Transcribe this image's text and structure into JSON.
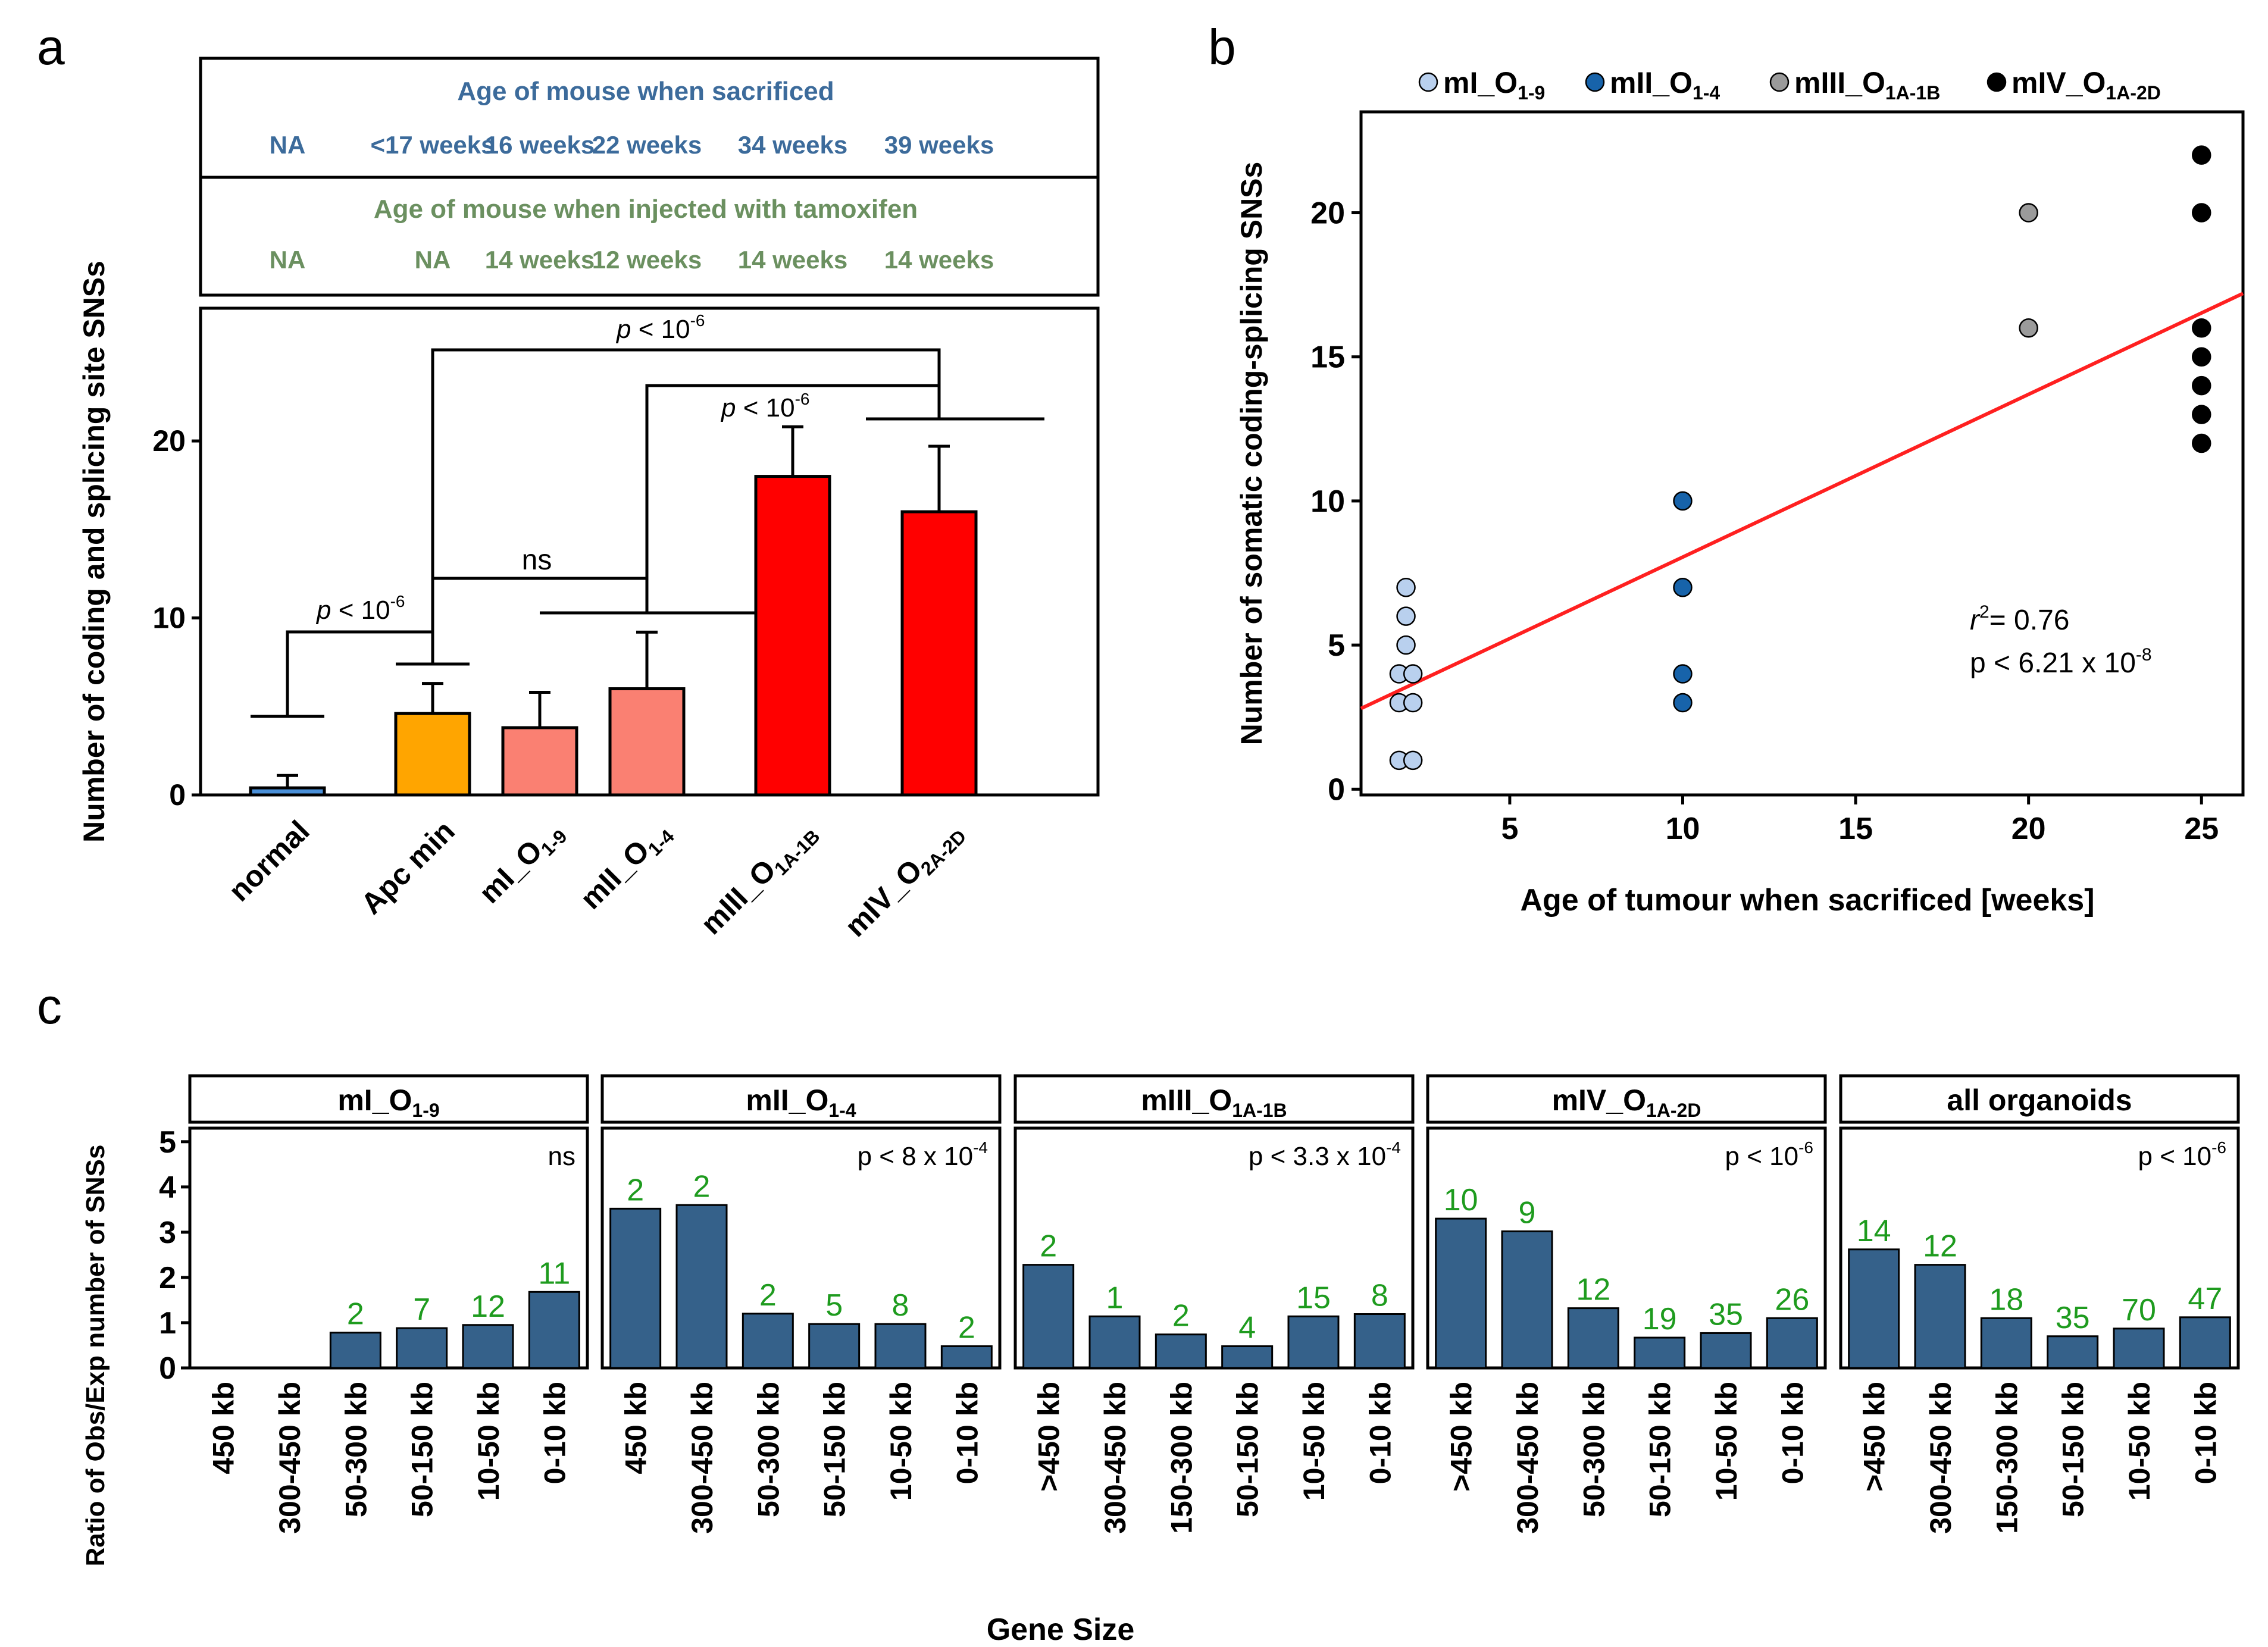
{
  "panel_labels": {
    "a": "a",
    "b": "b",
    "c": "c"
  },
  "colors": {
    "blue_text": "#3c6b9b",
    "green_text": "#6b9060",
    "count_green": "#1e9b1e",
    "bar_c": "#35618a",
    "reg_line": "#ff2020"
  },
  "chart_data": [
    {
      "id": "panel_a",
      "type": "bar",
      "ylabel": "Number of coding and splicing site SNSs",
      "ylim": [
        0,
        27.5
      ],
      "yticks": [
        0,
        10,
        20
      ],
      "categories": [
        "normal",
        "Apc min",
        "mI_O",
        "mII_O",
        "mIII_O",
        "mIV_O"
      ],
      "category_subscripts": [
        "",
        "",
        "1-9",
        "1-4",
        "1A-1B",
        "2A-2D"
      ],
      "values": [
        0.4,
        4.6,
        3.8,
        6.0,
        18.0,
        16.0
      ],
      "errors": [
        0.7,
        1.7,
        2.0,
        3.2,
        2.8,
        3.7
      ],
      "bar_colors": [
        "#4a90d9",
        "#ffa500",
        "#fa8072",
        "#fa8072",
        "#ff0000",
        "#ff0000"
      ],
      "annotations": [
        "p < 10",
        "p < 10",
        "ns",
        "p < 10"
      ],
      "annotation_exponents": [
        "-6",
        "-6",
        "",
        "-6"
      ],
      "table": {
        "title_1": "Age of mouse when sacrificed",
        "row_1": [
          "NA",
          "<17 weeks",
          "16 weeks",
          "22 weeks",
          "34 weeks",
          "39 weeks"
        ],
        "title_2": "Age of mouse when injected with tamoxifen",
        "row_2": [
          "NA",
          "NA",
          "14 weeks",
          "12 weeks",
          "14 weeks",
          "14 weeks"
        ]
      }
    },
    {
      "id": "panel_b",
      "type": "scatter",
      "xlabel": "Age of tumour when sacrificed [weeks]",
      "ylabel": "Number of somatic coding-splicing SNSs",
      "xlim": [
        0.7,
        26.2
      ],
      "ylim": [
        -0.2,
        23.5
      ],
      "xticks": [
        5,
        10,
        15,
        20,
        25
      ],
      "yticks": [
        0,
        5,
        10,
        15,
        20
      ],
      "legend": [
        {
          "name": "mI_O",
          "sub": "1-9",
          "color": "#b9d0ee"
        },
        {
          "name": "mII_O",
          "sub": "1-4",
          "color": "#1763aa"
        },
        {
          "name": "mIII_O",
          "sub": "1A-1B",
          "color": "#9b9b9b"
        },
        {
          "name": "mIV_O",
          "sub": "1A-2D",
          "color": "#000000"
        }
      ],
      "series": [
        {
          "name": "mI_O1-9",
          "color": "#b9d0ee",
          "points": [
            [
              2,
              7
            ],
            [
              2,
              6
            ],
            [
              2,
              5
            ],
            [
              1.8,
              4
            ],
            [
              2.2,
              4
            ],
            [
              1.8,
              3
            ],
            [
              2.2,
              3
            ],
            [
              1.8,
              1
            ],
            [
              2.2,
              1
            ]
          ]
        },
        {
          "name": "mII_O1-4",
          "color": "#1763aa",
          "points": [
            [
              10,
              10
            ],
            [
              10,
              7
            ],
            [
              10,
              4
            ],
            [
              10,
              3
            ]
          ]
        },
        {
          "name": "mIII_O1A-1B",
          "color": "#9b9b9b",
          "points": [
            [
              20,
              20
            ],
            [
              20,
              16
            ]
          ]
        },
        {
          "name": "mIV_O1A-2D",
          "color": "#000000",
          "points": [
            [
              25,
              22
            ],
            [
              25,
              20
            ],
            [
              25,
              16
            ],
            [
              25,
              15
            ],
            [
              25,
              14
            ],
            [
              25,
              13
            ],
            [
              25,
              12
            ]
          ]
        }
      ],
      "regression": {
        "x": [
          0.7,
          26.2
        ],
        "y": [
          2.8,
          17.2
        ]
      },
      "stat_r2": "= 0.76",
      "stat_p": "p < 6.21 x 10",
      "stat_p_exp": "-8"
    },
    {
      "id": "panel_c",
      "type": "bar",
      "xlabel": "Gene Size",
      "ylabel": "Ratio of Obs/Exp  number of SNSs",
      "ylim": [
        0,
        5.3
      ],
      "yticks": [
        0,
        1,
        2,
        3,
        4,
        5
      ],
      "facets": [
        {
          "title": "mI_O",
          "title_sub": "1-9",
          "pval": "ns",
          "pval_exp": "",
          "categories": [
            "450 kb",
            "300-450 kb",
            "50-300 kb",
            "50-150 kb",
            "10-50 kb",
            "0-10 kb"
          ],
          "values": [
            0,
            0,
            0.78,
            0.88,
            0.95,
            1.68
          ],
          "counts": [
            "",
            "",
            "2",
            "7",
            "12",
            "11"
          ]
        },
        {
          "title": "mII_O",
          "title_sub": "1-4",
          "pval": "p < 8 x 10",
          "pval_exp": "-4",
          "categories": [
            "450 kb",
            "300-450 kb",
            "50-300 kb",
            "50-150 kb",
            "10-50 kb",
            "0-10 kb"
          ],
          "values": [
            3.52,
            3.6,
            1.2,
            0.97,
            0.97,
            0.48
          ],
          "counts": [
            "2",
            "2",
            "2",
            "5",
            "8",
            "2"
          ]
        },
        {
          "title": "mIII_O",
          "title_sub": "1A-1B",
          "pval": "p < 3.3 x 10",
          "pval_exp": "-4",
          "categories": [
            ">450 kb",
            "300-450 kb",
            "150-300 kb",
            "50-150 kb",
            "10-50 kb",
            "0-10 kb"
          ],
          "values": [
            2.28,
            1.14,
            0.74,
            0.48,
            1.14,
            1.19
          ],
          "counts": [
            "2",
            "1",
            "2",
            "4",
            "15",
            "8"
          ]
        },
        {
          "title": "mIV_O",
          "title_sub": "1A-2D",
          "pval": "p < 10",
          "pval_exp": "-6",
          "categories": [
            ">450 kb",
            "300-450 kb",
            "50-300 kb",
            "50-150 kb",
            "10-50 kb",
            "0-10 kb"
          ],
          "values": [
            3.3,
            3.02,
            1.32,
            0.67,
            0.77,
            1.1
          ],
          "counts": [
            "10",
            "9",
            "12",
            "19",
            "35",
            "26"
          ]
        },
        {
          "title": "all organoids",
          "title_sub": "",
          "pval": "p < 10",
          "pval_exp": "-6",
          "categories": [
            ">450 kb",
            "300-450 kb",
            "150-300 kb",
            "50-150 kb",
            "10-50 kb",
            "0-10 kb"
          ],
          "values": [
            2.62,
            2.28,
            1.1,
            0.7,
            0.87,
            1.12
          ],
          "counts": [
            "14",
            "12",
            "18",
            "35",
            "70",
            "47"
          ]
        }
      ]
    }
  ]
}
